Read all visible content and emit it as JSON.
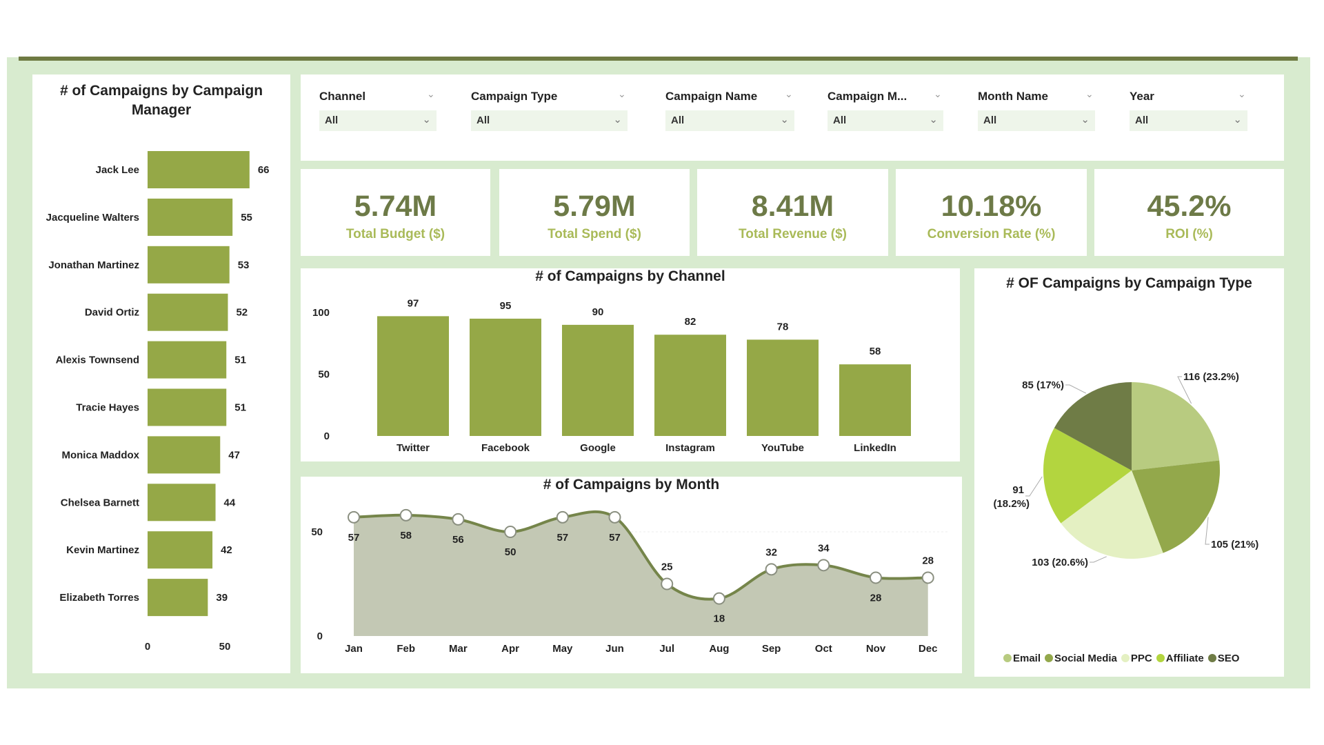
{
  "filters": [
    {
      "label": "Channel",
      "value": "All"
    },
    {
      "label": "Campaign Type",
      "value": "All"
    },
    {
      "label": "Campaign Name",
      "value": "All"
    },
    {
      "label": "Campaign M...",
      "value": "All"
    },
    {
      "label": "Month Name",
      "value": "All"
    },
    {
      "label": "Year",
      "value": "All"
    }
  ],
  "kpis": [
    {
      "value": "5.74M",
      "label": "Total Budget ($)"
    },
    {
      "value": "5.79M",
      "label": "Total Spend ($)"
    },
    {
      "value": "8.41M",
      "label": "Total Revenue ($)"
    },
    {
      "value": "10.18%",
      "label": "Conversion Rate (%)"
    },
    {
      "value": "45.2%",
      "label": "ROI (%)"
    }
  ],
  "colors": {
    "bar": "#95a847",
    "kpi_value": "#6d7a47",
    "kpi_label": "#a9ba58",
    "background": "#d8ebcf",
    "area": "#c3c8b4",
    "line": "#75854a"
  },
  "chart_data": [
    {
      "type": "bar",
      "orientation": "horizontal",
      "title": "# of Campaigns by Campaign Manager",
      "categories": [
        "Jack Lee",
        "Jacqueline Walters",
        "Jonathan Martinez",
        "David Ortiz",
        "Alexis Townsend",
        "Tracie Hayes",
        "Monica Maddox",
        "Chelsea Barnett",
        "Kevin Martinez",
        "Elizabeth Torres"
      ],
      "values": [
        66,
        55,
        53,
        52,
        51,
        51,
        47,
        44,
        42,
        39
      ],
      "xticks": [
        0,
        50
      ],
      "grid": false
    },
    {
      "type": "bar",
      "title": "# of Campaigns by Channel",
      "categories": [
        "Twitter",
        "Facebook",
        "Google",
        "Instagram",
        "YouTube",
        "LinkedIn"
      ],
      "values": [
        97,
        95,
        90,
        82,
        78,
        58
      ],
      "yticks": [
        0,
        50,
        100
      ],
      "grid": false
    },
    {
      "type": "area",
      "title": "# of Campaigns by Month",
      "categories": [
        "Jan",
        "Feb",
        "Mar",
        "Apr",
        "May",
        "Jun",
        "Jul",
        "Aug",
        "Sep",
        "Oct",
        "Nov",
        "Dec"
      ],
      "values": [
        57,
        58,
        56,
        50,
        57,
        57,
        25,
        18,
        32,
        34,
        28,
        28
      ],
      "yticks": [
        0,
        50
      ],
      "grid": false
    },
    {
      "type": "pie",
      "title": "# OF Campaigns by Campaign Type",
      "legend": "bottom",
      "slices": [
        {
          "name": "Email",
          "value": 116,
          "label": "116 (23.2%)",
          "color": "#b8cb80"
        },
        {
          "name": "Social Media",
          "value": 105,
          "label": "105 (21%)",
          "color": "#93a84b"
        },
        {
          "name": "PPC",
          "value": 103,
          "label": "103 (20.6%)",
          "color": "#e4f0c2"
        },
        {
          "name": "Affiliate",
          "value": 91,
          "label": "91 (18.2%)",
          "color": "#b3d53f"
        },
        {
          "name": "SEO",
          "value": 85,
          "label": "85 (17%)",
          "color": "#6f7c46"
        }
      ]
    }
  ]
}
